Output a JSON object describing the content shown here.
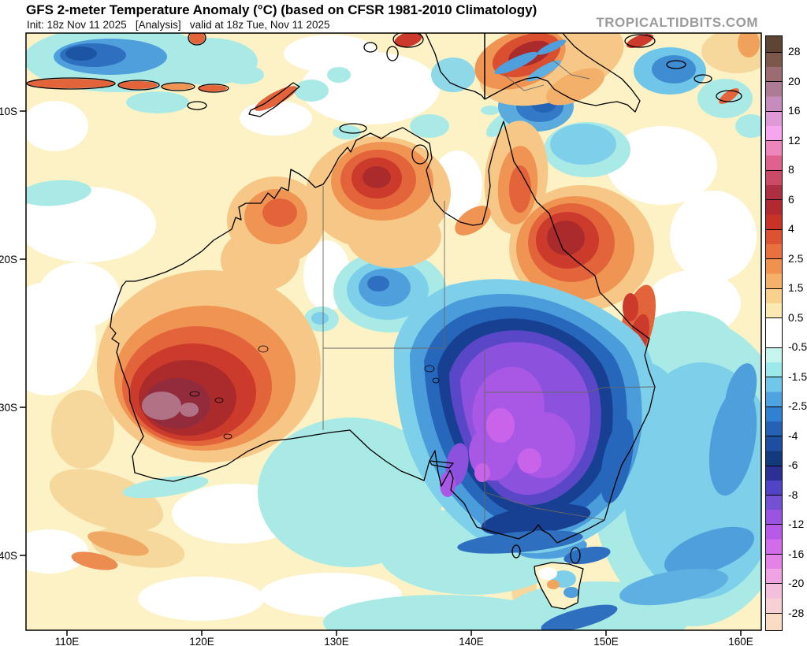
{
  "header": {
    "title": "GFS 2-meter Temperature Anomaly (°C) (based on CFSR 1981-2010 Climatology)",
    "init_line": "Init: 18z Nov 11 2025   [Analysis]   valid at 18z Tue, Nov 11 2025",
    "watermark": "TROPICALTIDBITS.COM"
  },
  "map": {
    "lat_tick_labels": [
      "10S",
      "20S",
      "30S",
      "40S"
    ],
    "lon_tick_labels": [
      "110E",
      "120E",
      "130E",
      "140E",
      "150E",
      "160E"
    ]
  },
  "colorbar": {
    "unit": "°C",
    "tick_labels": [
      "28",
      "20",
      "16",
      "12",
      "8",
      "6",
      "4",
      "2.5",
      "1.5",
      "0.5",
      "-0.5",
      "-1.5",
      "-2.5",
      "-4",
      "-6",
      "-8",
      "-12",
      "-16",
      "-20",
      "-28"
    ],
    "segments": [
      {
        "colors": [
          "#5e4433"
        ]
      },
      {
        "colors": [
          "#7b584a",
          "#9b6d72"
        ]
      },
      {
        "colors": [
          "#ac7c94",
          "#c88bbe"
        ]
      },
      {
        "colors": [
          "#df99d7",
          "#f7a6ee"
        ]
      },
      {
        "colors": [
          "#ee85bd",
          "#e0618d"
        ]
      },
      {
        "colors": [
          "#cd4a67",
          "#ad2f41"
        ]
      },
      {
        "colors": [
          "#b12a30",
          "#c93327"
        ]
      },
      {
        "colors": [
          "#dd5233",
          "#e97140"
        ]
      },
      {
        "colors": [
          "#f0914f",
          "#f5b169"
        ]
      },
      {
        "colors": [
          "#f9d18e",
          "#fbe9b3"
        ]
      },
      {
        "colors": [
          "#ffffff",
          "#ffffff"
        ]
      },
      {
        "colors": [
          "#c5f5ed",
          "#9ce9e9"
        ]
      },
      {
        "colors": [
          "#70c7e9",
          "#4da4e0"
        ]
      },
      {
        "colors": [
          "#3181d3",
          "#2561b5"
        ]
      },
      {
        "colors": [
          "#1e4e9f",
          "#133a7c"
        ]
      },
      {
        "colors": [
          "#2c2f93",
          "#5244c6"
        ]
      },
      {
        "colors": [
          "#7450d4",
          "#9b53e2"
        ]
      },
      {
        "colors": [
          "#b75ae8",
          "#d26cea"
        ]
      },
      {
        "colors": [
          "#e383e8",
          "#efa3e2"
        ]
      },
      {
        "colors": [
          "#f4bfdc",
          "#f7d0d4"
        ]
      },
      {
        "colors": [
          "#f9dcc3"
        ]
      }
    ]
  }
}
